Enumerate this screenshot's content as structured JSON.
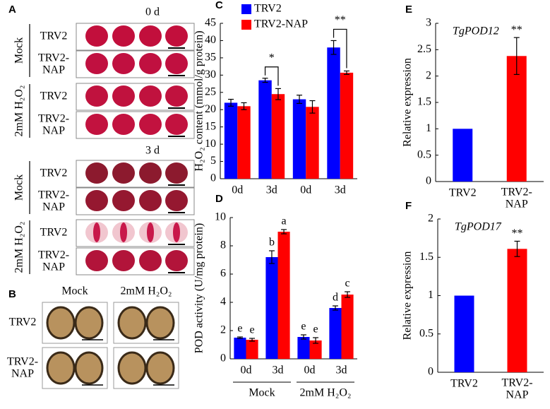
{
  "photo_panels": {
    "A": {
      "label": "A",
      "timepoints": [
        {
          "label": "0 d",
          "groups": [
            {
              "treatment": "Mock",
              "rows": [
                "TRV2",
                "TRV2-\nNAP"
              ]
            },
            {
              "treatment": "2mM H₂O₂",
              "rows": [
                "TRV2",
                "TRV2-\nNAP"
              ]
            }
          ]
        },
        {
          "label": "3 d",
          "groups": [
            {
              "treatment": "Mock",
              "rows": [
                "TRV2",
                "TRV2-\nNAP"
              ]
            },
            {
              "treatment": "2mM H₂O₂",
              "rows": [
                "TRV2",
                "TRV2-\nNAP"
              ]
            }
          ]
        }
      ]
    },
    "B": {
      "label": "B",
      "columns": [
        "Mock",
        "2mM H₂O₂"
      ],
      "rows": [
        "TRV2",
        "TRV2-\nNAP"
      ]
    }
  },
  "chart_data": [
    {
      "type": "bar",
      "panel_label": "C",
      "y_label": "H₂O₂ content (mmol/g protein)",
      "categories": [
        "0d",
        "3d",
        "0d",
        "3d"
      ],
      "series": [
        {
          "name": "TRV2",
          "color": "#0000ff",
          "values": [
            22,
            28.5,
            23,
            38
          ],
          "errors": [
            1,
            0.6,
            1.2,
            2
          ]
        },
        {
          "name": "TRV2-NAP",
          "color": "#ff0000",
          "values": [
            21,
            24.5,
            20.8,
            30.7
          ],
          "errors": [
            1,
            1.6,
            1.8,
            0.5
          ]
        }
      ],
      "significance": [
        null,
        "*",
        null,
        "**"
      ],
      "ylim": [
        0,
        45
      ],
      "yticks": [
        0,
        5,
        10,
        15,
        20,
        25,
        30,
        35,
        40,
        45
      ],
      "legend": "upper left"
    },
    {
      "type": "bar",
      "panel_label": "D",
      "y_label": "POD activity (U/mg protein)",
      "categories": [
        "0d",
        "3d",
        "0d",
        "3d"
      ],
      "groups": [
        "Mock",
        "2mM H₂O₂"
      ],
      "series": [
        {
          "color": "#0000ff",
          "values": [
            1.5,
            7.2,
            1.55,
            3.6
          ],
          "errors": [
            0.05,
            0.45,
            0.15,
            0.15
          ],
          "letters": [
            "e",
            "b",
            "e",
            "d"
          ]
        },
        {
          "color": "#ff0000",
          "values": [
            1.35,
            9.0,
            1.3,
            4.55
          ],
          "errors": [
            0.1,
            0.15,
            0.2,
            0.2
          ],
          "letters": [
            "e",
            "a",
            "e",
            "c"
          ]
        }
      ],
      "ylim": [
        0,
        10
      ],
      "yticks": [
        0,
        2,
        4,
        6,
        8,
        10
      ]
    },
    {
      "type": "bar",
      "panel_label": "E",
      "gene": "TgPOD12",
      "y_label": "Relative expression",
      "categories": [
        "TRV2",
        "TRV2-\nNAP"
      ],
      "values": [
        1,
        2.38
      ],
      "errors": [
        null,
        0.35
      ],
      "colors": [
        "#0000ff",
        "#ff0000"
      ],
      "significance": [
        null,
        "**"
      ],
      "ylim": [
        0,
        3
      ],
      "yticks": [
        0,
        0.5,
        1,
        1.5,
        2,
        2.5,
        3
      ]
    },
    {
      "type": "bar",
      "panel_label": "F",
      "gene": "TgPOD17",
      "y_label": "Relative expression",
      "categories": [
        "TRV2",
        "TRV2-\nNAP"
      ],
      "values": [
        1,
        1.61
      ],
      "errors": [
        null,
        0.1
      ],
      "colors": [
        "#0000ff",
        "#ff0000"
      ],
      "significance": [
        null,
        "**"
      ],
      "ylim": [
        0,
        2
      ],
      "yticks": [
        0,
        0.5,
        1,
        1.5,
        2
      ]
    }
  ]
}
